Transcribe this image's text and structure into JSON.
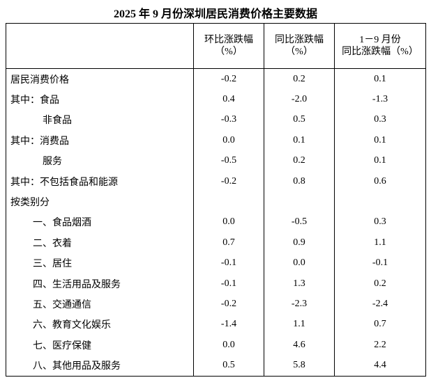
{
  "title": "2025 年 9 月份深圳居民消费价格主要数据",
  "table": {
    "headers": [
      [
        "环比涨跌幅",
        "（%）"
      ],
      [
        "同比涨跌幅",
        "（%）"
      ],
      [
        "1－9 月份",
        "同比涨跌幅（%）"
      ]
    ],
    "rows": [
      [
        "居民消费价格",
        "-0.2",
        "0.2",
        "0.1"
      ],
      [
        "其中：食品",
        "0.4",
        "-2.0",
        "-1.3"
      ],
      [
        "非食品",
        "-0.3",
        "0.5",
        "0.3"
      ],
      [
        "其中：消费品",
        "0.0",
        "0.1",
        "0.1"
      ],
      [
        "服务",
        "-0.5",
        "0.2",
        "0.1"
      ],
      [
        "其中：不包括食品和能源",
        "-0.2",
        "0.8",
        "0.6"
      ],
      [
        "按类别分"
      ],
      [
        "一、食品烟酒",
        "0.0",
        "-0.5",
        "0.3"
      ],
      [
        "二、衣着",
        "0.7",
        "0.9",
        "1.1"
      ],
      [
        "三、居住",
        "-0.1",
        "0.0",
        "-0.1"
      ],
      [
        "四、生活用品及服务",
        "-0.1",
        "1.3",
        "0.2"
      ],
      [
        "五、交通通信",
        "-0.2",
        "-2.3",
        "-2.4"
      ],
      [
        "六、教育文化娱乐",
        "-1.4",
        "1.1",
        "0.7"
      ],
      [
        "七、医疗保健",
        "0.0",
        "4.6",
        "2.2"
      ],
      [
        "八、其他用品及服务",
        "0.5",
        "5.8",
        "4.4"
      ]
    ]
  }
}
